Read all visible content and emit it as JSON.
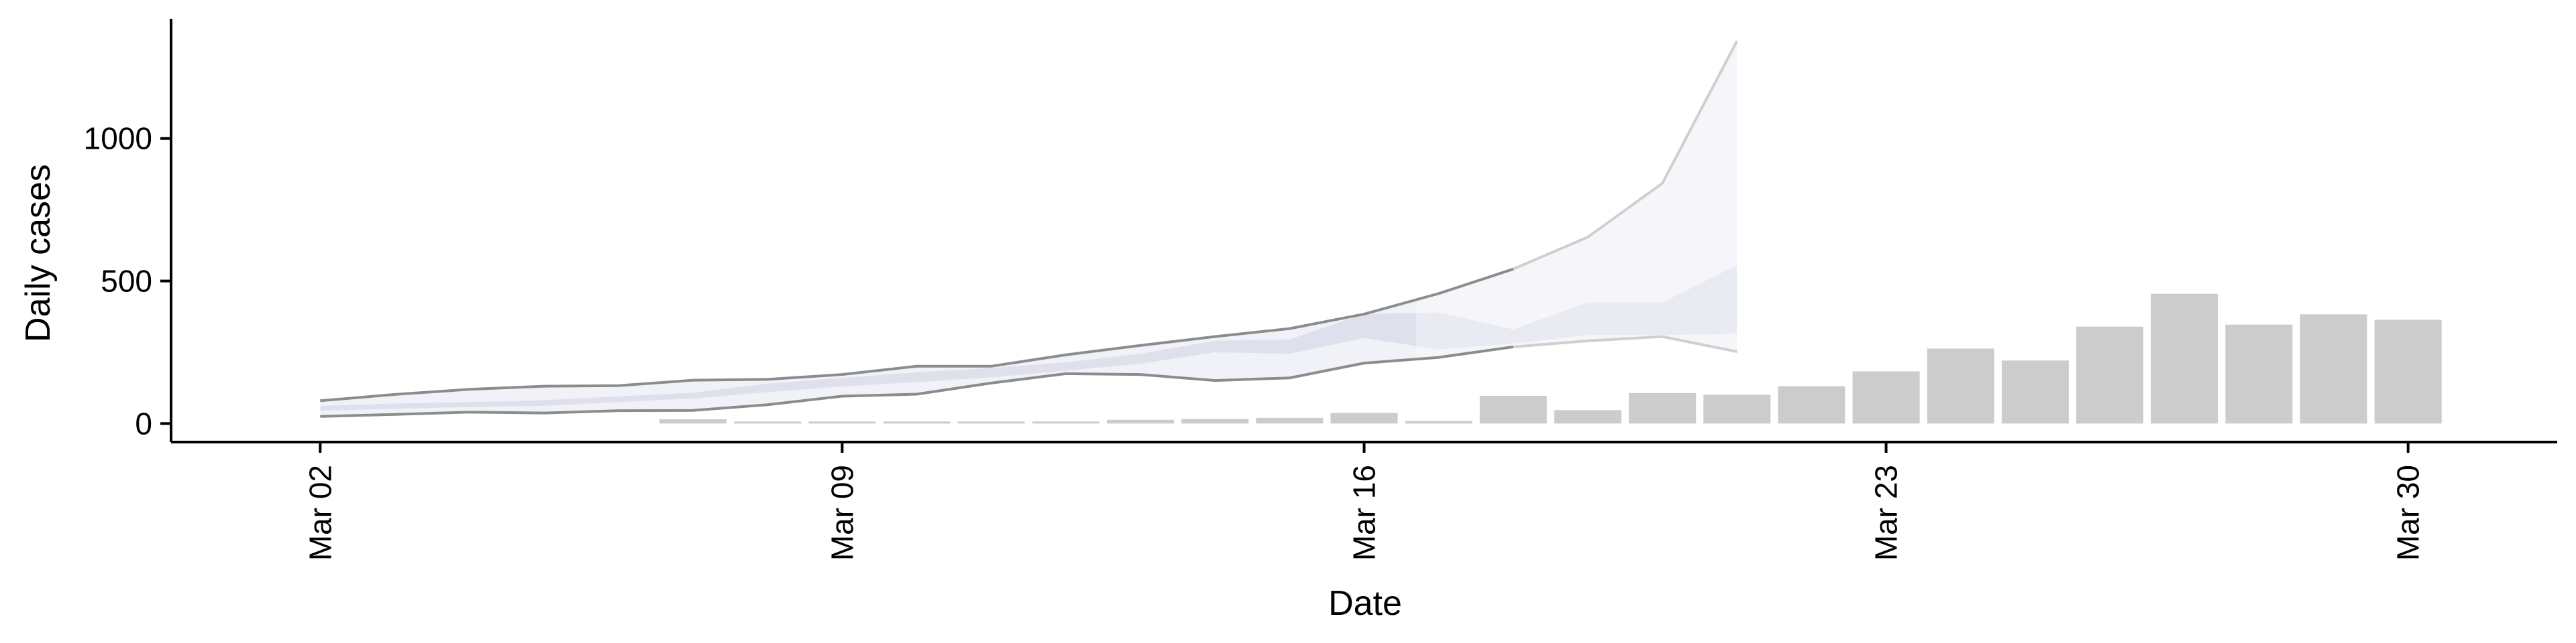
{
  "chart_data": {
    "type": "bar",
    "title": "",
    "xlabel": "Date",
    "ylabel": "Daily cases",
    "x_ticks": [
      {
        "date": "2020-03-02",
        "label": "Mar 02"
      },
      {
        "date": "2020-03-09",
        "label": "Mar 09"
      },
      {
        "date": "2020-03-16",
        "label": "Mar 16"
      },
      {
        "date": "2020-03-23",
        "label": "Mar 23"
      },
      {
        "date": "2020-03-30",
        "label": "Mar 30"
      }
    ],
    "y_ticks": [
      0,
      500,
      1000
    ],
    "xlim": [
      "2020-02-29",
      "2020-04-01"
    ],
    "ylim": [
      -65,
      1420
    ],
    "grid": false,
    "legend": "none",
    "colors": {
      "bars": "#cccccc",
      "band_dark": "#dcdfea",
      "band_light": "#eef0f6",
      "band_faint": "#f4f5f9",
      "line_dark": "#8c8c8c",
      "line_light": "#cfcfcf"
    },
    "bars": {
      "dates": [
        "2020-03-07",
        "2020-03-08",
        "2020-03-09",
        "2020-03-10",
        "2020-03-11",
        "2020-03-12",
        "2020-03-13",
        "2020-03-14",
        "2020-03-15",
        "2020-03-16",
        "2020-03-17",
        "2020-03-18",
        "2020-03-19",
        "2020-03-20",
        "2020-03-21",
        "2020-03-22",
        "2020-03-23",
        "2020-03-24",
        "2020-03-25",
        "2020-03-26",
        "2020-03-27",
        "2020-03-28",
        "2020-03-29",
        "2020-03-30"
      ],
      "values": [
        15,
        6,
        6,
        6,
        6,
        6,
        13,
        16,
        20,
        37,
        9,
        97,
        47,
        107,
        101,
        131,
        183,
        263,
        221,
        340,
        455,
        347,
        383,
        364
      ]
    },
    "outer_band": {
      "dates": [
        "2020-03-02",
        "2020-03-03",
        "2020-03-04",
        "2020-03-05",
        "2020-03-06",
        "2020-03-07",
        "2020-03-08",
        "2020-03-09",
        "2020-03-10",
        "2020-03-11",
        "2020-03-12",
        "2020-03-13",
        "2020-03-14",
        "2020-03-15",
        "2020-03-16",
        "2020-03-17",
        "2020-03-18",
        "2020-03-19",
        "2020-03-20",
        "2020-03-21"
      ],
      "lower": [
        25,
        32,
        40,
        37,
        45,
        46,
        66,
        96,
        103,
        142,
        175,
        172,
        151,
        160,
        212,
        232,
        269,
        290,
        305,
        252
      ],
      "upper": [
        80,
        102,
        120,
        131,
        133,
        152,
        155,
        172,
        201,
        201,
        241,
        274,
        305,
        333,
        384,
        456,
        542,
        654,
        843,
        1342
      ]
    },
    "inner_band": {
      "dates": [
        "2020-03-02",
        "2020-03-03",
        "2020-03-04",
        "2020-03-05",
        "2020-03-06",
        "2020-03-07",
        "2020-03-08",
        "2020-03-09",
        "2020-03-10",
        "2020-03-11",
        "2020-03-12",
        "2020-03-13",
        "2020-03-14",
        "2020-03-15",
        "2020-03-16",
        "2020-03-17",
        "2020-03-18",
        "2020-03-19",
        "2020-03-20",
        "2020-03-21"
      ],
      "lower": [
        45,
        52,
        58,
        62,
        75,
        88,
        110,
        130,
        145,
        162,
        185,
        210,
        250,
        245,
        300,
        260,
        280,
        310,
        310,
        315
      ],
      "upper": [
        62,
        70,
        75,
        82,
        95,
        108,
        140,
        160,
        180,
        195,
        215,
        245,
        290,
        295,
        385,
        390,
        330,
        425,
        425,
        555
      ]
    }
  }
}
